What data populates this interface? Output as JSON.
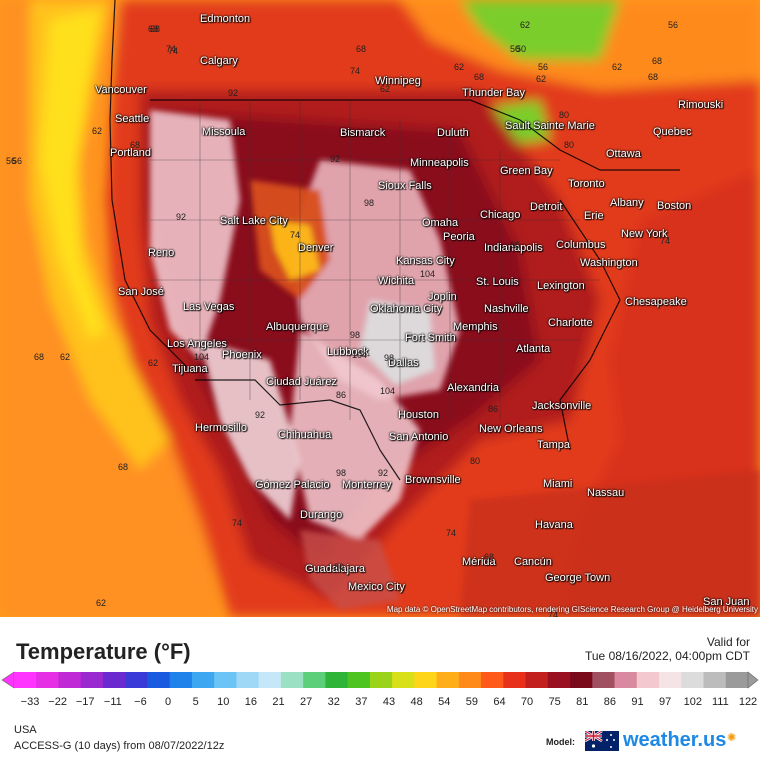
{
  "colors": {
    "ocean_far": "#ff8c1a",
    "ocean_near": "#ffd21a",
    "warm": "#e8431a",
    "hot": "#c21f1f",
    "very_hot": "#8e0f1a",
    "extreme": "#f3c9cf",
    "peak": "#dcdcdc",
    "cool": "#4fc23a",
    "mild": "#ffae1a"
  },
  "cities": [
    {
      "name": "Edmonton"
    },
    {
      "name": "Calgary"
    },
    {
      "name": "Vancouver"
    },
    {
      "name": "Seattle"
    },
    {
      "name": "Portland"
    },
    {
      "name": "Missoula"
    },
    {
      "name": "Winnipeg"
    },
    {
      "name": "Thunder Bay"
    },
    {
      "name": "Bismarck"
    },
    {
      "name": "Duluth"
    },
    {
      "name": "Sault Sainte Marie"
    },
    {
      "name": "Quebec"
    },
    {
      "name": "Rimouski"
    },
    {
      "name": "Ottawa"
    },
    {
      "name": "Minneapolis"
    },
    {
      "name": "Green Bay"
    },
    {
      "name": "Sioux Falls"
    },
    {
      "name": "Toronto"
    },
    {
      "name": "Detroit"
    },
    {
      "name": "Albany"
    },
    {
      "name": "Boston"
    },
    {
      "name": "Erie"
    },
    {
      "name": "Salt Lake City"
    },
    {
      "name": "Reno"
    },
    {
      "name": "Denver"
    },
    {
      "name": "Omaha"
    },
    {
      "name": "Chicago"
    },
    {
      "name": "Peoria"
    },
    {
      "name": "Indianapolis"
    },
    {
      "name": "Columbus"
    },
    {
      "name": "New York"
    },
    {
      "name": "Kansas City"
    },
    {
      "name": "Washington"
    },
    {
      "name": "Wichita"
    },
    {
      "name": "St. Louis"
    },
    {
      "name": "Joplin"
    },
    {
      "name": "Lexington"
    },
    {
      "name": "San José"
    },
    {
      "name": "Las Vegas"
    },
    {
      "name": "Oklahoma City"
    },
    {
      "name": "Nashville"
    },
    {
      "name": "Chesapeake"
    },
    {
      "name": "Albuquerque"
    },
    {
      "name": "Memphis"
    },
    {
      "name": "Charlotte"
    },
    {
      "name": "Fort Smith"
    },
    {
      "name": "Los Angeles"
    },
    {
      "name": "Phoenix"
    },
    {
      "name": "Lubbock"
    },
    {
      "name": "Atlanta"
    },
    {
      "name": "Tijuana"
    },
    {
      "name": "Dallas"
    },
    {
      "name": "Ciudad Juárez"
    },
    {
      "name": "Alexandria"
    },
    {
      "name": "Jacksonville"
    },
    {
      "name": "Houston"
    },
    {
      "name": "Hermosillo"
    },
    {
      "name": "Chihuahua"
    },
    {
      "name": "San Antonio"
    },
    {
      "name": "New Orleans"
    },
    {
      "name": "Tampa"
    },
    {
      "name": "Brownsville"
    },
    {
      "name": "Miami"
    },
    {
      "name": "Gómez Palacio"
    },
    {
      "name": "Monterrey"
    },
    {
      "name": "Nassau"
    },
    {
      "name": "Durango"
    },
    {
      "name": "Havana"
    },
    {
      "name": "Mérida"
    },
    {
      "name": "Cancún"
    },
    {
      "name": "George Town"
    },
    {
      "name": "Guadalajara"
    },
    {
      "name": "Mexico City"
    },
    {
      "name": "San Juan"
    }
  ],
  "isotherms": [
    "68",
    "74",
    "68",
    "62",
    "56",
    "50",
    "56",
    "62",
    "68",
    "62",
    "50",
    "56",
    "62",
    "68",
    "68",
    "62",
    "62",
    "68",
    "68",
    "74",
    "74",
    "80",
    "92",
    "92",
    "86",
    "80",
    "74",
    "92",
    "74",
    "98",
    "98",
    "98",
    "104",
    "104",
    "104",
    "92",
    "98",
    "92",
    "86",
    "80",
    "74",
    "68",
    "62",
    "86",
    "80",
    "62",
    "104",
    "74",
    "62",
    "68",
    "56",
    "68",
    "74"
  ],
  "attribution": "Map data © OpenStreetMap contributors, rendering GIScience Research Group @ Heidelberg University",
  "footer": {
    "title": "Temperature (°F)",
    "valid_label": "Valid for",
    "valid_time": "Tue 08/16/2022, 04:00pm CDT",
    "region": "USA",
    "model_run": "ACCESS-G (10 days) from 08/07/2022/12z",
    "model_label": "Model:",
    "brand": "weather.",
    "brand_tld": "us"
  },
  "legend": {
    "ticks": [
      "−33",
      "−22",
      "−17",
      "−11",
      "−6",
      "0",
      "5",
      "10",
      "16",
      "21",
      "27",
      "32",
      "37",
      "43",
      "48",
      "54",
      "59",
      "64",
      "70",
      "75",
      "81",
      "86",
      "91",
      "97",
      "102",
      "111",
      "122"
    ],
    "colors": [
      "#ff35ff",
      "#e530e5",
      "#c02ad6",
      "#9a2ad0",
      "#6a2ad0",
      "#3a3ad8",
      "#1a5ae0",
      "#1f82ea",
      "#3ea7f2",
      "#6cc3f5",
      "#9fd8f7",
      "#c6e7f7",
      "#9be0c2",
      "#5dcf7b",
      "#2fb43a",
      "#4dc41f",
      "#9ad31a",
      "#d8e01a",
      "#ffd51a",
      "#ffae1a",
      "#ff8a1a",
      "#ff5a1a",
      "#e8311a",
      "#c21f1f",
      "#9a1020",
      "#7a0a1a",
      "#a05060",
      "#d98aa0",
      "#f3c9cf",
      "#f4e4e6",
      "#dcdcdc",
      "#bcbcbc",
      "#9a9a9a"
    ]
  }
}
